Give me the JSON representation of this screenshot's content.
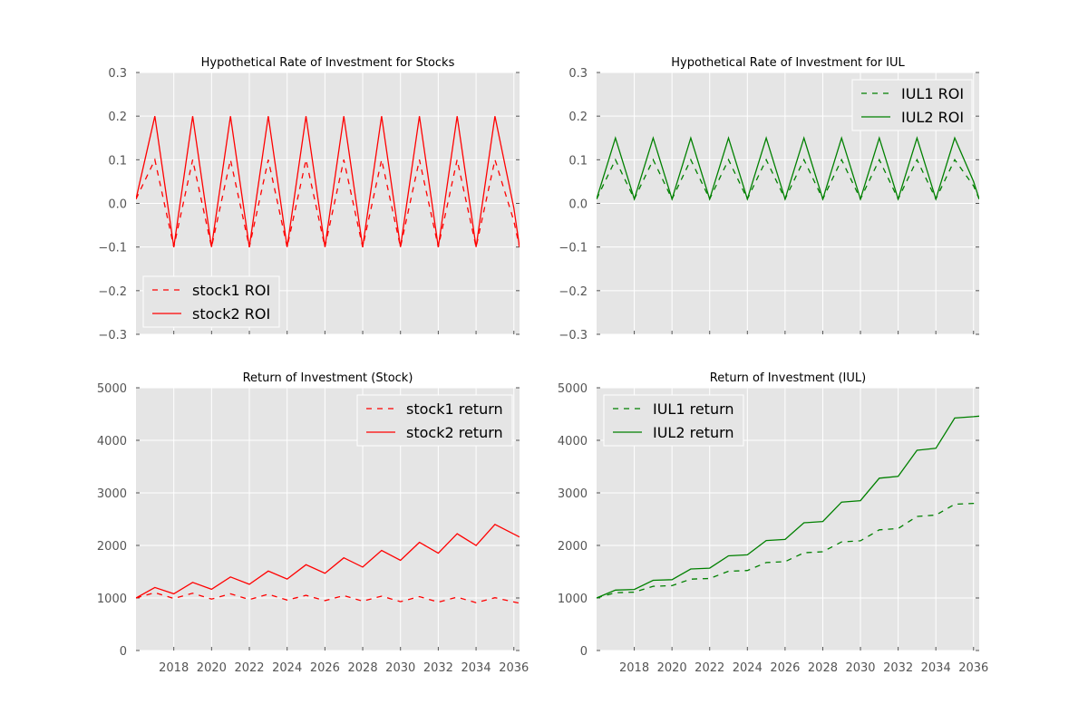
{
  "chart_data": [
    {
      "type": "line",
      "title": "Hypothetical Rate of Investment for Stocks",
      "xlabel": "",
      "ylabel": "",
      "xlim": [
        2016.0,
        2036.3
      ],
      "ylim": [
        -0.3,
        0.3
      ],
      "yticks": [
        -0.3,
        -0.2,
        -0.1,
        0.0,
        0.1,
        0.2,
        0.3
      ],
      "ytick_labels": [
        "−0.3",
        "−0.2",
        "−0.1",
        "0.0",
        "0.1",
        "0.2",
        "0.3"
      ],
      "xticks": [
        2018,
        2020,
        2022,
        2024,
        2026,
        2028,
        2030,
        2032,
        2034,
        2036
      ],
      "xtick_labels": [],
      "grid": true,
      "legend": "lower-left",
      "x": [
        2016.0,
        2017.0,
        2018.0,
        2019.0,
        2020.0,
        2021.0,
        2022.0,
        2023.0,
        2024.0,
        2025.0,
        2026.0,
        2027.0,
        2028.0,
        2029.0,
        2030.0,
        2031.0,
        2032.0,
        2033.0,
        2034.0,
        2035.0,
        2036.0,
        2036.3
      ],
      "series": [
        {
          "name": "stock1 ROI",
          "style": "dashed",
          "color": "#ff0000",
          "values": [
            0.01,
            0.1,
            -0.1,
            0.1,
            -0.1,
            0.1,
            -0.1,
            0.1,
            -0.1,
            0.1,
            -0.1,
            0.1,
            -0.1,
            0.1,
            -0.1,
            0.1,
            -0.1,
            0.1,
            -0.1,
            0.1,
            -0.04,
            -0.1
          ]
        },
        {
          "name": "stock2 ROI",
          "style": "solid",
          "color": "#ff0000",
          "values": [
            0.01,
            0.2,
            -0.1,
            0.2,
            -0.1,
            0.2,
            -0.1,
            0.2,
            -0.1,
            0.2,
            -0.1,
            0.2,
            -0.1,
            0.2,
            -0.1,
            0.2,
            -0.1,
            0.2,
            -0.1,
            0.2,
            -0.01,
            -0.1
          ]
        }
      ]
    },
    {
      "type": "line",
      "title": "Hypothetical Rate of Investment for IUL",
      "xlabel": "",
      "ylabel": "",
      "xlim": [
        2016.0,
        2036.3
      ],
      "ylim": [
        -0.3,
        0.3
      ],
      "yticks": [
        -0.3,
        -0.2,
        -0.1,
        0.0,
        0.1,
        0.2,
        0.3
      ],
      "ytick_labels": [
        "−0.3",
        "−0.2",
        "−0.1",
        "0.0",
        "0.1",
        "0.2",
        "0.3"
      ],
      "xticks": [
        2018,
        2020,
        2022,
        2024,
        2026,
        2028,
        2030,
        2032,
        2034,
        2036
      ],
      "xtick_labels": [],
      "grid": true,
      "legend": "top-right",
      "x": [
        2016.0,
        2017.0,
        2018.0,
        2019.0,
        2020.0,
        2021.0,
        2022.0,
        2023.0,
        2024.0,
        2025.0,
        2026.0,
        2027.0,
        2028.0,
        2029.0,
        2030.0,
        2031.0,
        2032.0,
        2033.0,
        2034.0,
        2035.0,
        2036.0,
        2036.3
      ],
      "series": [
        {
          "name": "IUL1 ROI",
          "style": "dashed",
          "color": "#008000",
          "values": [
            0.01,
            0.1,
            0.01,
            0.1,
            0.01,
            0.1,
            0.01,
            0.1,
            0.01,
            0.1,
            0.01,
            0.1,
            0.01,
            0.1,
            0.01,
            0.1,
            0.01,
            0.1,
            0.01,
            0.1,
            0.04,
            0.01
          ]
        },
        {
          "name": "IUL2 ROI",
          "style": "solid",
          "color": "#008000",
          "values": [
            0.01,
            0.15,
            0.01,
            0.15,
            0.01,
            0.15,
            0.01,
            0.15,
            0.01,
            0.15,
            0.01,
            0.15,
            0.01,
            0.15,
            0.01,
            0.15,
            0.01,
            0.15,
            0.01,
            0.15,
            0.05,
            0.01
          ]
        }
      ]
    },
    {
      "type": "line",
      "title": "Return of Investment (Stock)",
      "xlabel": "",
      "ylabel": "",
      "xlim": [
        2016.0,
        2036.3
      ],
      "ylim": [
        0,
        5000
      ],
      "yticks": [
        0,
        1000,
        2000,
        3000,
        4000,
        5000
      ],
      "ytick_labels": [
        "0",
        "1000",
        "2000",
        "3000",
        "4000",
        "5000"
      ],
      "xticks": [
        2018,
        2020,
        2022,
        2024,
        2026,
        2028,
        2030,
        2032,
        2034,
        2036
      ],
      "xtick_labels": [
        "2018",
        "2020",
        "2022",
        "2024",
        "2026",
        "2028",
        "2030",
        "2032",
        "2034",
        "2036"
      ],
      "grid": true,
      "legend": "top-right",
      "x": [
        2016.0,
        2017.0,
        2018.0,
        2019.0,
        2020.0,
        2021.0,
        2022.0,
        2023.0,
        2024.0,
        2025.0,
        2026.0,
        2027.0,
        2028.0,
        2029.0,
        2030.0,
        2031.0,
        2032.0,
        2033.0,
        2034.0,
        2035.0,
        2036.3
      ],
      "series": [
        {
          "name": "stock1 return",
          "style": "dashed",
          "color": "#ff0000",
          "values": [
            1000,
            1100,
            990,
            1090,
            980,
            1080,
            970,
            1070,
            960,
            1050,
            950,
            1045,
            940,
            1035,
            930,
            1025,
            920,
            1015,
            910,
            1005,
            900
          ]
        },
        {
          "name": "stock2 return",
          "style": "solid",
          "color": "#ff0000",
          "values": [
            1000,
            1200,
            1080,
            1296,
            1166,
            1400,
            1260,
            1512,
            1360,
            1633,
            1470,
            1764,
            1588,
            1905,
            1715,
            2058,
            1852,
            2222,
            2000,
            2400,
            2160
          ]
        }
      ]
    },
    {
      "type": "line",
      "title": "Return of Investment (IUL)",
      "xlabel": "",
      "ylabel": "",
      "xlim": [
        2016.0,
        2036.3
      ],
      "ylim": [
        0,
        5000
      ],
      "yticks": [
        0,
        1000,
        2000,
        3000,
        4000,
        5000
      ],
      "ytick_labels": [
        "0",
        "1000",
        "2000",
        "3000",
        "4000",
        "5000"
      ],
      "xticks": [
        2018,
        2020,
        2022,
        2024,
        2026,
        2028,
        2030,
        2032,
        2034,
        2036
      ],
      "xtick_labels": [
        "2018",
        "2020",
        "2022",
        "2024",
        "2026",
        "2028",
        "2030",
        "2032",
        "2034",
        "2036"
      ],
      "grid": true,
      "legend": "top-left",
      "x": [
        2016.0,
        2017.0,
        2018.0,
        2019.0,
        2020.0,
        2021.0,
        2022.0,
        2023.0,
        2024.0,
        2025.0,
        2026.0,
        2027.0,
        2028.0,
        2029.0,
        2030.0,
        2031.0,
        2032.0,
        2033.0,
        2034.0,
        2035.0,
        2036.0,
        2036.3
      ],
      "series": [
        {
          "name": "IUL1 return",
          "style": "dashed",
          "color": "#008000",
          "values": [
            1000,
            1100,
            1111,
            1222,
            1234,
            1358,
            1371,
            1508,
            1523,
            1675,
            1692,
            1861,
            1880,
            2068,
            2088,
            2297,
            2320,
            2552,
            2578,
            2785,
            2800,
            2800
          ]
        },
        {
          "name": "IUL2 return",
          "style": "solid",
          "color": "#008000",
          "values": [
            1000,
            1150,
            1162,
            1336,
            1349,
            1552,
            1567,
            1802,
            1820,
            2093,
            2114,
            2431,
            2455,
            2824,
            2852,
            3280,
            3313,
            3810,
            3848,
            4425,
            4450,
            4460
          ]
        }
      ]
    }
  ]
}
